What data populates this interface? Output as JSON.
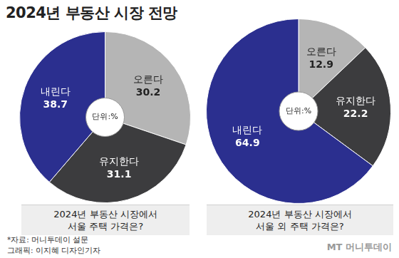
{
  "title": "2024년 부동산 시장 전망",
  "source": "*자료: 머니투데이 설문",
  "credit": "그래픽: 이지혜 디자인기자",
  "logo": "MT 머니투데이",
  "chart_data": [
    {
      "type": "pie",
      "title": "2024년 부동산 시장에서\n서울 주택 가격은?",
      "annotations": [
        "단위:%"
      ],
      "categories": [
        "오른다",
        "유지한다",
        "내린다"
      ],
      "values": [
        30.2,
        31.1,
        38.7
      ],
      "colors": [
        "#b5b5b5",
        "#3c3c3e",
        "#2b2f8f"
      ],
      "data_labels": true
    },
    {
      "type": "pie",
      "title": "2024년 부동산 시장에서\n서울 외 주택 가격은?",
      "annotations": [
        "단위:%"
      ],
      "categories": [
        "오른다",
        "유지한다",
        "내린다"
      ],
      "values": [
        12.9,
        22.2,
        64.9
      ],
      "colors": [
        "#b5b5b5",
        "#3c3c3e",
        "#2b2f8f"
      ],
      "data_labels": true
    }
  ]
}
